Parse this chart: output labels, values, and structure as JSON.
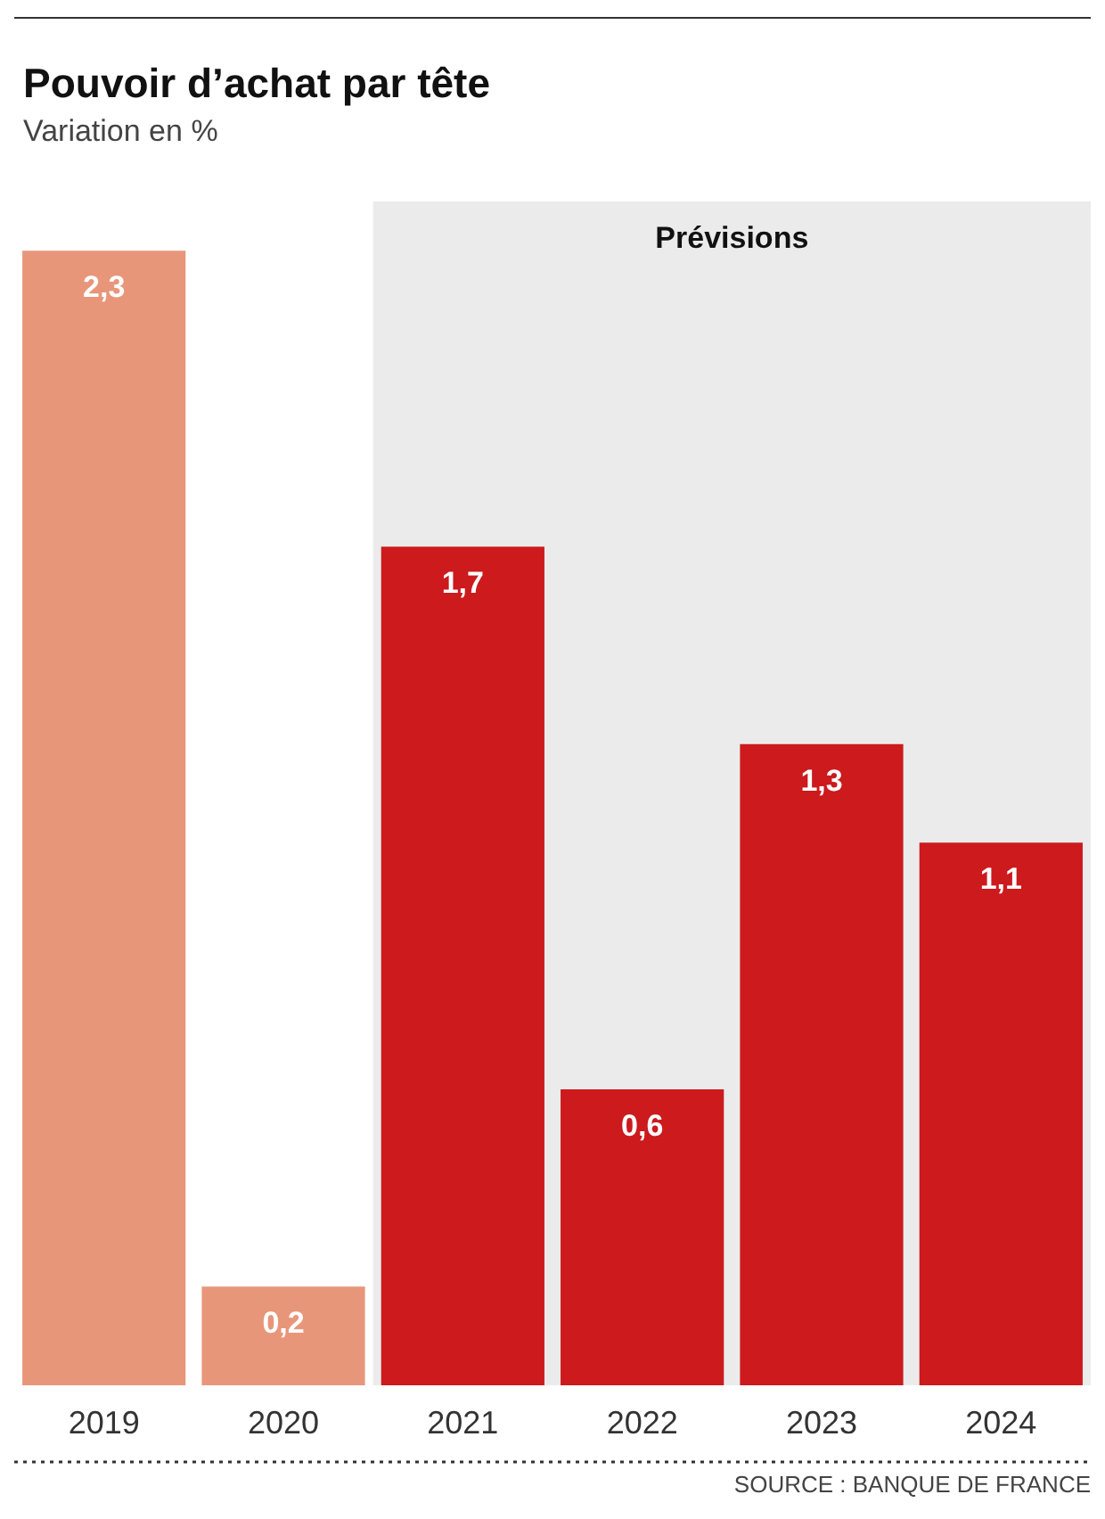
{
  "chart_data": {
    "type": "bar",
    "title": "Pouvoir d’achat par tête",
    "subtitle": "Variation en %",
    "categories": [
      "2019",
      "2020",
      "2021",
      "2022",
      "2023",
      "2024"
    ],
    "values": [
      2.3,
      0.2,
      1.7,
      0.6,
      1.3,
      1.1
    ],
    "colors": [
      "#e8967a",
      "#e8967a",
      "#cc1a1d",
      "#cc1a1d",
      "#cc1a1d",
      "#cc1a1d"
    ],
    "value_labels": [
      "2,3",
      "0,2",
      "1,7",
      "0,6",
      "1,3",
      "1,1"
    ],
    "ylim": [
      0,
      2.4
    ],
    "bands": [
      {
        "axis": "x",
        "from": "2021",
        "to": "2024",
        "label": "Prévisions",
        "color": "#ebebeb"
      }
    ],
    "annotations": [
      "SOURCE : BANQUE DE FRANCE"
    ]
  }
}
